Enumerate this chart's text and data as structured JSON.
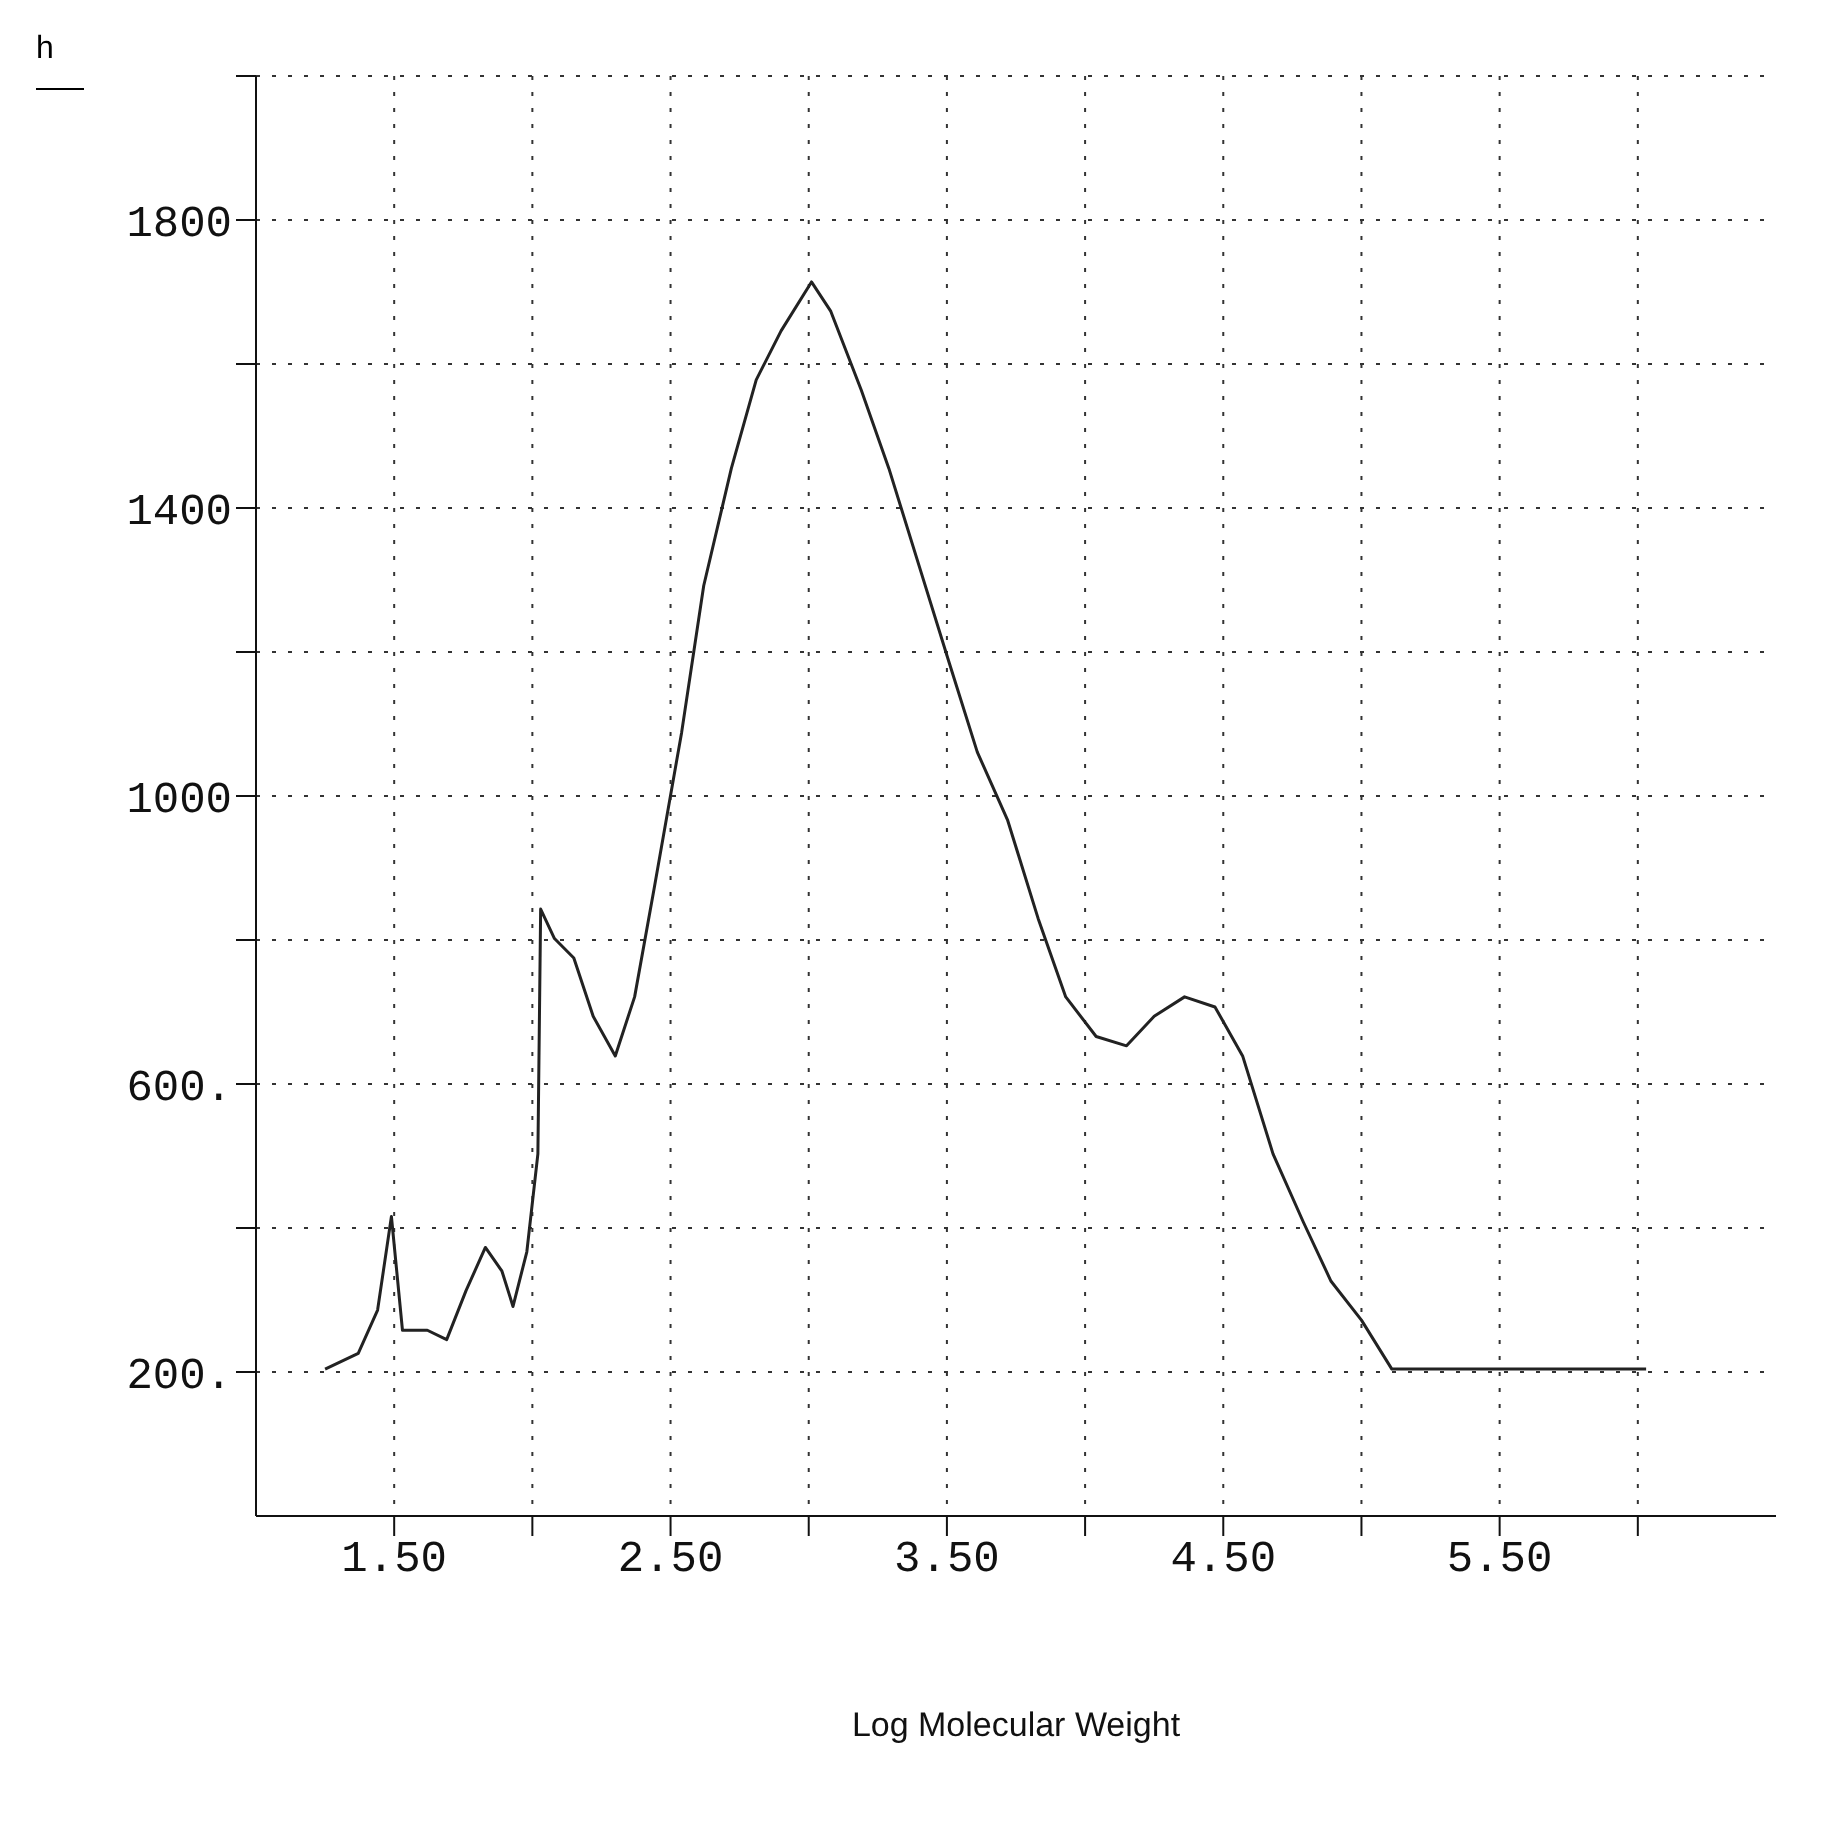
{
  "chart_data": {
    "type": "line",
    "xlabel": "Log Molecular Weight",
    "ylabel": "h",
    "x": [
      1.25,
      1.37,
      1.44,
      1.49,
      1.53,
      1.62,
      1.69,
      1.76,
      1.83,
      1.89,
      1.93,
      1.98,
      2.02,
      2.03,
      2.08,
      2.15,
      2.22,
      2.3,
      2.37,
      2.44,
      2.54,
      2.62,
      2.72,
      2.81,
      2.9,
      3.01,
      3.08,
      3.19,
      3.29,
      3.4,
      3.51,
      3.61,
      3.72,
      3.83,
      3.93,
      4.04,
      4.15,
      4.25,
      4.36,
      4.47,
      4.57,
      4.68,
      4.79,
      4.89,
      5.0,
      5.11,
      6.03
    ],
    "series": [
      {
        "color": "#222222",
        "values": [
          204,
          226,
          286,
          416,
          258,
          258,
          245,
          313,
          373,
          340,
          291,
          367,
          503,
          843,
          802,
          775,
          694,
          639,
          721,
          870,
          1088,
          1292,
          1455,
          1578,
          1646,
          1714,
          1673,
          1564,
          1455,
          1319,
          1183,
          1061,
          966,
          830,
          721,
          666,
          653,
          694,
          721,
          707,
          639,
          503,
          408,
          326,
          272,
          204,
          204
        ]
      }
    ],
    "xlim": [
      1,
      6.5
    ],
    "xticks": [
      {
        "value": 1.5,
        "label": "1.50"
      },
      {
        "value": 2,
        "label": null
      },
      {
        "value": 2.5,
        "label": "2.50"
      },
      {
        "value": 3,
        "label": null
      },
      {
        "value": 3.5,
        "label": "3.50"
      },
      {
        "value": 4,
        "label": null
      },
      {
        "value": 4.5,
        "label": "4.50"
      },
      {
        "value": 5,
        "label": null
      },
      {
        "value": 5.5,
        "label": "5.50"
      },
      {
        "value": 6,
        "label": null
      }
    ],
    "ylim": [
      0,
      2000
    ],
    "yticks": [
      {
        "value": 200,
        "label": "200."
      },
      {
        "value": 400,
        "label": null
      },
      {
        "value": 600,
        "label": "600."
      },
      {
        "value": 800,
        "label": null
      },
      {
        "value": 1000,
        "label": "1000"
      },
      {
        "value": 1200,
        "label": null
      },
      {
        "value": 1400,
        "label": "1400"
      },
      {
        "value": 1600,
        "label": null
      },
      {
        "value": 1800,
        "label": "1800"
      },
      {
        "value": 2000,
        "label": null
      }
    ],
    "grid": true,
    "marker": "none",
    "line_style": "solid"
  }
}
